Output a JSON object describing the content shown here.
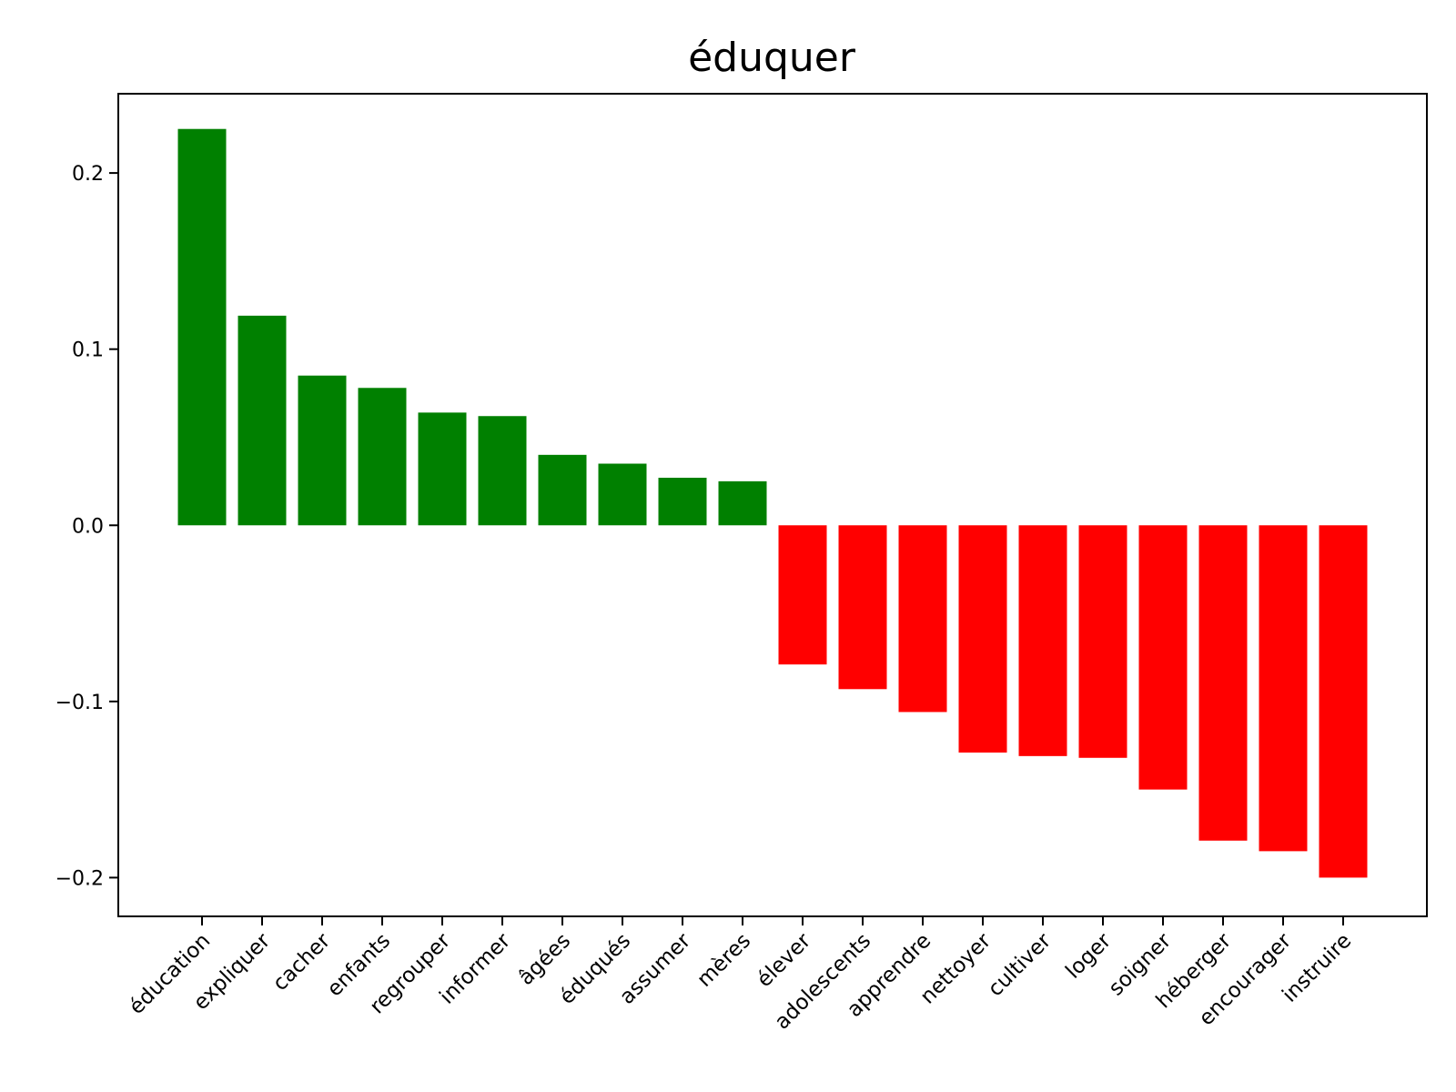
{
  "chart_data": {
    "type": "bar",
    "title": "éduquer",
    "xlabel": "",
    "ylabel": "",
    "ylim": [
      -0.222,
      0.245
    ],
    "yticks": [
      0.2,
      0.1,
      0.0,
      -0.1,
      -0.2
    ],
    "ytick_labels": [
      "0.2",
      "0.1",
      "0.0",
      "−0.1",
      "−0.2"
    ],
    "grid": false,
    "legend": "none",
    "positive_color": "#008000",
    "negative_color": "#ff0000",
    "categories": [
      "éducation",
      "expliquer",
      "cacher",
      "enfants",
      "regrouper",
      "informer",
      "âgées",
      "éduqués",
      "assumer",
      "mères",
      "élever",
      "adolescents",
      "apprendre",
      "nettoyer",
      "cultiver",
      "loger",
      "soigner",
      "héberger",
      "encourager",
      "instruire"
    ],
    "values": [
      0.225,
      0.119,
      0.085,
      0.078,
      0.064,
      0.062,
      0.04,
      0.035,
      0.027,
      0.025,
      -0.079,
      -0.093,
      -0.106,
      -0.129,
      -0.131,
      -0.132,
      -0.15,
      -0.179,
      -0.185,
      -0.2
    ]
  }
}
